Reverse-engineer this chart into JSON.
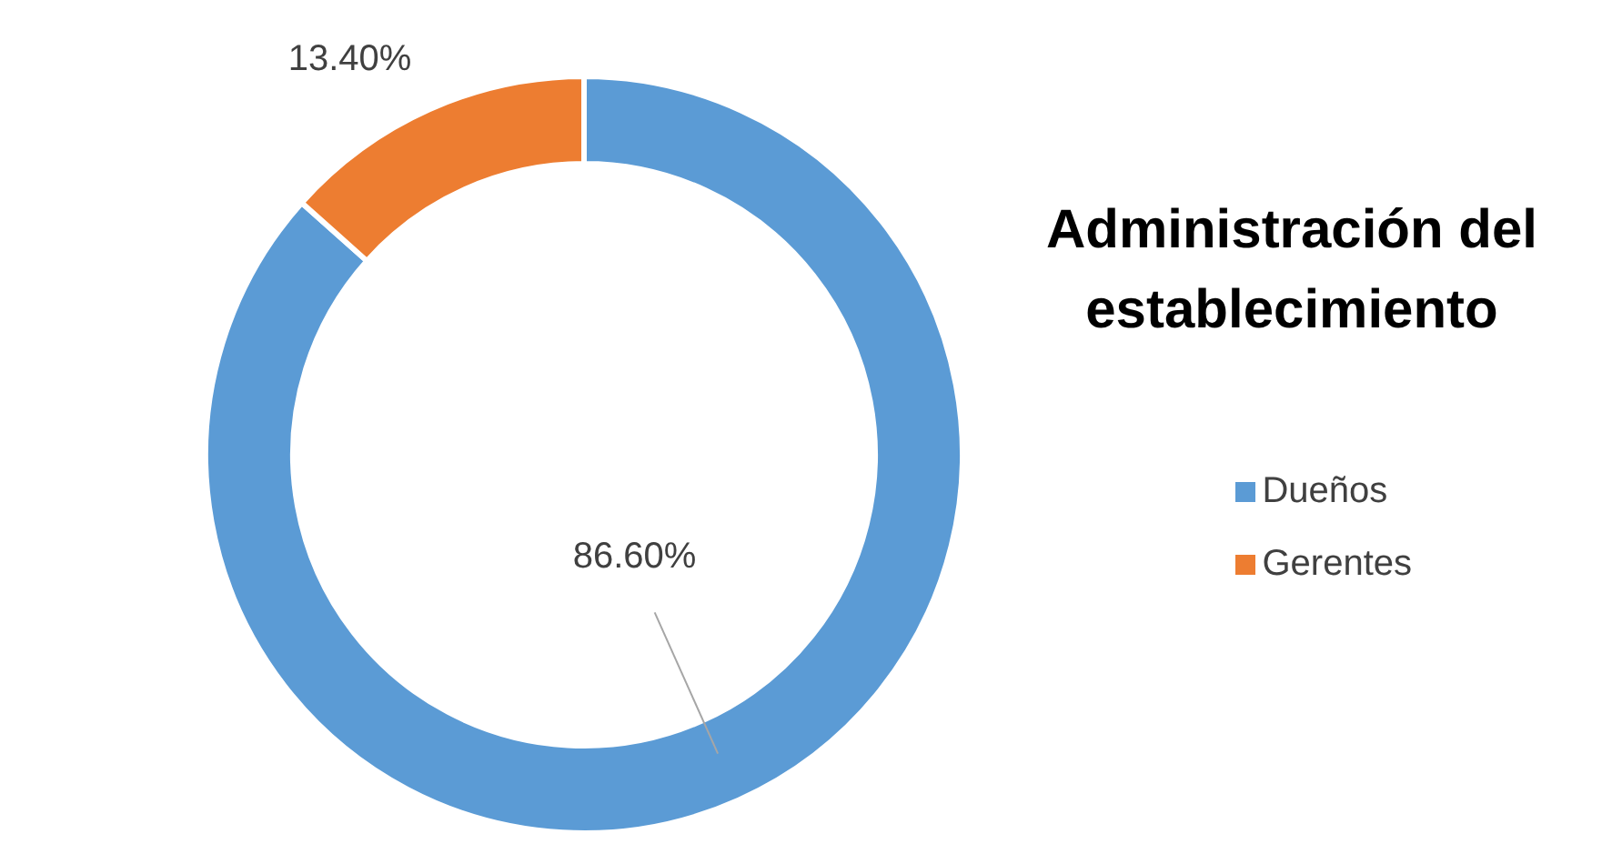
{
  "chart_data": {
    "type": "donut",
    "title": "Administración del establecimiento",
    "categories": [
      "Dueños",
      "Gerentes"
    ],
    "values": [
      86.6,
      13.4
    ],
    "colors": [
      "#5b9bd5",
      "#ed7d31"
    ],
    "value_labels": [
      "86.60%",
      "13.40%"
    ],
    "legend": "right"
  }
}
